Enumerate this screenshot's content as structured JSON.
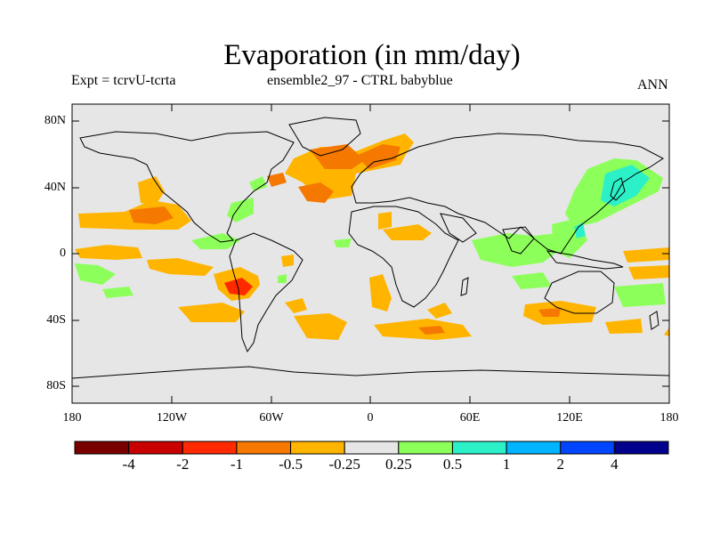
{
  "title": "Evaporation (in mm/day)",
  "subtitle_left": "Expt = tcrvU-tcrta",
  "subtitle_center": "ensemble2_97 - CTRL babyblue",
  "subtitle_right": "ANN",
  "chart_data": {
    "type": "heatmap",
    "projection": "cylindrical-equidistant",
    "lat_ticks": [
      "80N",
      "40N",
      "0",
      "40S",
      "80S"
    ],
    "lon_ticks": [
      "180",
      "120W",
      "60W",
      "0",
      "60E",
      "120E",
      "180"
    ],
    "missing_fill": "#e6e6e6",
    "colorbar": {
      "colors": [
        "#7a0000",
        "#c80000",
        "#ff2a00",
        "#f57800",
        "#ffb400",
        "#e6e6e6",
        "#8cff5a",
        "#2cf0c8",
        "#00b4ff",
        "#0046ff",
        "#00008c"
      ],
      "labels": [
        "-4",
        "-2",
        "-1",
        "-0.5",
        "-0.25",
        "0.25",
        "0.5",
        "1",
        "2",
        "4"
      ]
    }
  }
}
